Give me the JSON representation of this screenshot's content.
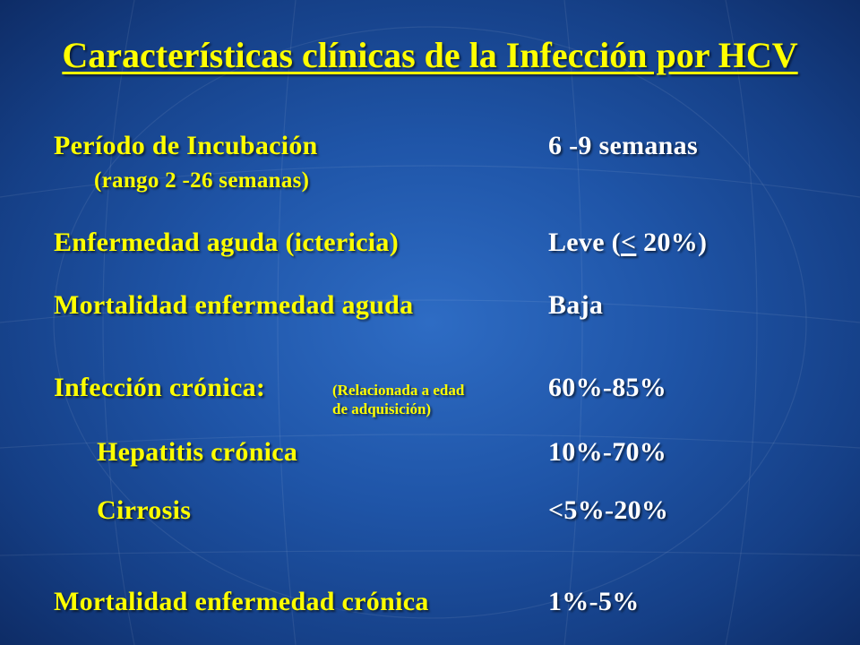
{
  "slide": {
    "title": "Características clínicas de la Infección por HCV",
    "rows": [
      {
        "label": "Período de Incubación",
        "sublabel": "(rango 2 -26 semanas)",
        "value": "6 -9 semanas"
      },
      {
        "label": "Enfermedad aguda (ictericia)",
        "value_prefix": "Leve (",
        "value_underlined": "<",
        "value_suffix": " 20%)"
      },
      {
        "label": "Mortalidad enfermedad aguda",
        "value": "Baja"
      },
      {
        "label": "Infección crónica:",
        "note_line1": "(Relacionada a edad",
        "note_line2": "de adquisición)",
        "value": "60%-85%"
      },
      {
        "label": "Hepatitis crónica",
        "value": "10%-70%"
      },
      {
        "label": "Cirrosis",
        "value": "<5%-20%"
      },
      {
        "label": "Mortalidad enfermedad crónica",
        "value": "1%-5%"
      }
    ]
  },
  "colors": {
    "title": "#ffff00",
    "labels": "#ffff00",
    "values": "#ffffff",
    "background": "#1f55a8"
  }
}
